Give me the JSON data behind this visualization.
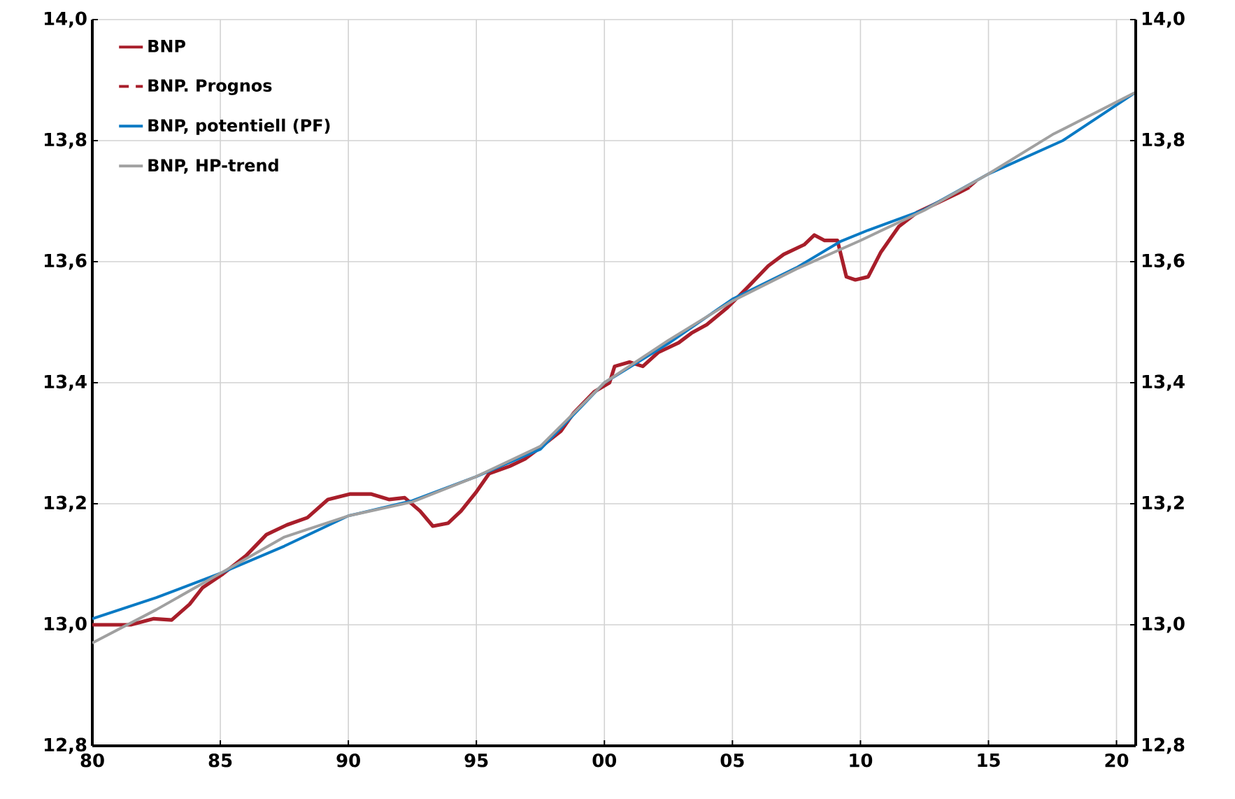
{
  "chart_data": {
    "type": "line",
    "grid": true,
    "legend": "top left",
    "marker": "none",
    "xlim": [
      1980,
      2020.75
    ],
    "ylim": [
      12.8,
      14.0
    ],
    "y2lim": [
      12.8,
      14.0
    ],
    "xticks": [
      {
        "value": 1980,
        "label": "80"
      },
      {
        "value": 1985,
        "label": "85"
      },
      {
        "value": 1990,
        "label": "90"
      },
      {
        "value": 1995,
        "label": "95"
      },
      {
        "value": 2000,
        "label": "00"
      },
      {
        "value": 2005,
        "label": "05"
      },
      {
        "value": 2010,
        "label": "10"
      },
      {
        "value": 2015,
        "label": "15"
      },
      {
        "value": 2020,
        "label": "20"
      }
    ],
    "yticks": [
      {
        "value": 12.8,
        "label": "12,8"
      },
      {
        "value": 13.0,
        "label": "13,0"
      },
      {
        "value": 13.2,
        "label": "13,2"
      },
      {
        "value": 13.4,
        "label": "13,4"
      },
      {
        "value": 13.6,
        "label": "13,6"
      },
      {
        "value": 13.8,
        "label": "13,8"
      },
      {
        "value": 14.0,
        "label": "14,0"
      }
    ],
    "y2ticks": [
      {
        "value": 12.8,
        "label": "12,8"
      },
      {
        "value": 13.0,
        "label": "13,0"
      },
      {
        "value": 13.2,
        "label": "13,2"
      },
      {
        "value": 13.4,
        "label": "13,4"
      },
      {
        "value": 13.6,
        "label": "13,6"
      },
      {
        "value": 13.8,
        "label": "13,8"
      },
      {
        "value": 14.0,
        "label": "14,0"
      }
    ],
    "series": [
      {
        "name": "BNP",
        "color": "#a81e2a",
        "line_style": "solid",
        "x": [
          1980,
          1981.5,
          1982.4,
          1983.1,
          1983.8,
          1984.3,
          1985.1,
          1986.0,
          1986.8,
          1987.6,
          1988.4,
          1989.2,
          1990.05,
          1990.9,
          1991.6,
          1992.2,
          1992.8,
          1993.3,
          1993.9,
          1994.4,
          1994.97,
          1995.5,
          1996.3,
          1996.9,
          1997.4,
          1998.3,
          1998.8,
          1999.6,
          2000.2,
          2000.4,
          2000.98,
          2001.5,
          2002.1,
          2002.9,
          2003.4,
          2004.0,
          2004.8,
          2005.6,
          2006.4,
          2007.0,
          2007.8,
          2008.2,
          2008.6,
          2009.1,
          2009.45,
          2009.8,
          2010.3,
          2010.8,
          2011.5,
          2012.2,
          2013.0,
          2013.8,
          2014.25
        ],
        "values": [
          13.0,
          13.0,
          13.01,
          13.008,
          13.034,
          13.061,
          13.084,
          13.114,
          13.149,
          13.165,
          13.177,
          13.207,
          13.216,
          13.216,
          13.207,
          13.21,
          13.188,
          13.163,
          13.168,
          13.188,
          13.218,
          13.25,
          13.262,
          13.274,
          13.29,
          13.32,
          13.35,
          13.385,
          13.4,
          13.427,
          13.434,
          13.427,
          13.45,
          13.466,
          13.482,
          13.496,
          13.524,
          13.558,
          13.593,
          13.612,
          13.628,
          13.644,
          13.635,
          13.635,
          13.575,
          13.57,
          13.575,
          13.616,
          13.658,
          13.681,
          13.697,
          13.713,
          13.723
        ]
      },
      {
        "name": "BNP. Prognos",
        "color": "#a81e2a",
        "line_style": "dashed",
        "x": [
          2014.25,
          2014.6
        ],
        "values": [
          13.723,
          13.736
        ]
      },
      {
        "name": "BNP, potentiell (PF)",
        "color": "#0a7ac4",
        "line_style": "solid",
        "x": [
          1980,
          1982.5,
          1985,
          1987.5,
          1990,
          1992.5,
          1995,
          1997.5,
          2000,
          2002.5,
          2005,
          2007.5,
          2009.2,
          2010.3,
          2012.5,
          2015,
          2017.9,
          2020.75
        ],
        "values": [
          13.01,
          13.045,
          13.085,
          13.13,
          13.18,
          13.205,
          13.245,
          13.29,
          13.4,
          13.465,
          13.538,
          13.59,
          13.633,
          13.652,
          13.686,
          13.745,
          13.8,
          13.88
        ]
      },
      {
        "name": "BNP, HP-trend",
        "color": "#a0a0a0",
        "line_style": "solid",
        "x": [
          1980,
          1982.5,
          1985,
          1987.5,
          1990,
          1992.5,
          1995,
          1997.5,
          2000,
          2002.5,
          2005,
          2007.5,
          2010,
          2012.5,
          2015,
          2017.5,
          2020.75
        ],
        "values": [
          12.97,
          13.025,
          13.085,
          13.145,
          13.18,
          13.203,
          13.245,
          13.295,
          13.4,
          13.47,
          13.535,
          13.588,
          13.635,
          13.685,
          13.745,
          13.81,
          13.88
        ]
      }
    ]
  }
}
